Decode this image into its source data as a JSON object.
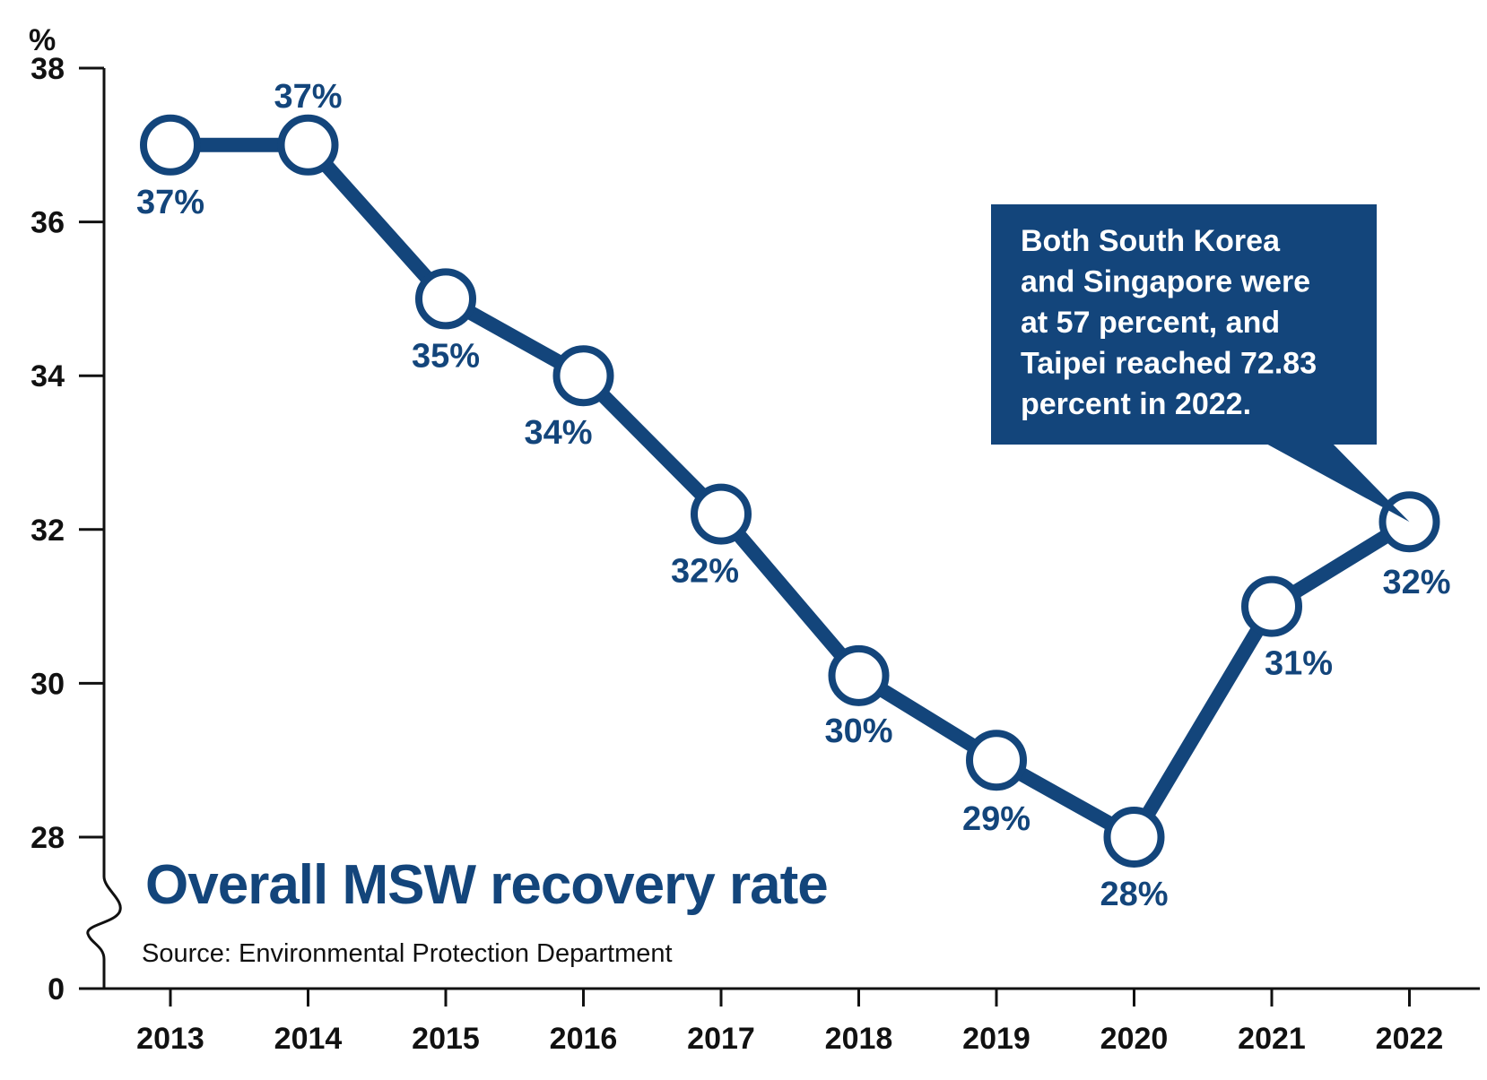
{
  "chart_data": {
    "type": "line",
    "title": "Overall MSW recovery rate",
    "source": "Source: Environmental Protection Department",
    "ylabel": "%",
    "ylim": [
      28,
      38
    ],
    "axis_break": true,
    "y_ticks": [
      "0",
      "28",
      "30",
      "32",
      "34",
      "36",
      "38"
    ],
    "categories": [
      "2013",
      "2014",
      "2015",
      "2016",
      "2017",
      "2018",
      "2019",
      "2020",
      "2021",
      "2022"
    ],
    "values": [
      37,
      37,
      35,
      34,
      32.2,
      30.1,
      29,
      28,
      31,
      32.1
    ],
    "data_labels": [
      "37%",
      "37%",
      "35%",
      "34%",
      "32%",
      "30%",
      "29%",
      "28%",
      "31%",
      "32%"
    ],
    "annotation": {
      "lines": [
        "Both South Korea",
        "and Singapore were",
        "at 57 percent, and",
        "Taipei reached 72.83",
        "percent in 2022."
      ],
      "points_to": "2022"
    },
    "colors": {
      "line": "#13457b",
      "marker_fill": "#ffffff",
      "axis": "#111111",
      "callout_bg": "#13457b"
    }
  }
}
